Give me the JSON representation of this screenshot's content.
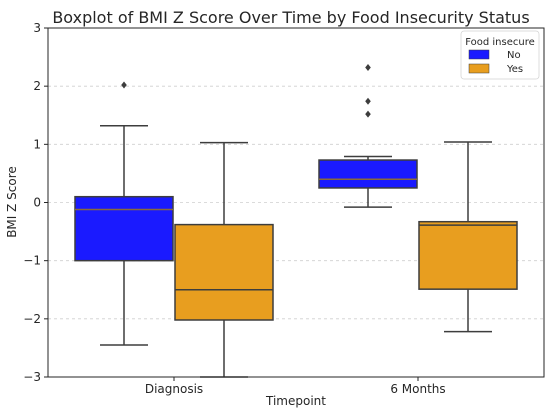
{
  "chart_data": {
    "type": "boxplot",
    "title": "Boxplot of BMI Z Score Over Time by Food Insecurity Status",
    "xlabel": "Timepoint",
    "ylabel": "BMI Z Score",
    "ylim": [
      -3,
      3
    ],
    "yticks": [
      -3,
      -2,
      -1,
      0,
      1,
      2,
      3
    ],
    "ytick_labels": [
      "−3",
      "−2",
      "−1",
      "0",
      "1",
      "2",
      "3"
    ],
    "categories": [
      "Diagnosis",
      "6 Months"
    ],
    "grid": "horizontal dashed",
    "legend": {
      "title": "Food insecure",
      "placement": "top-right"
    },
    "series": [
      {
        "name": "No",
        "color": "#1a1aff",
        "boxes": [
          {
            "category": "Diagnosis",
            "whisker_low": -2.45,
            "q1": -1.0,
            "median": -0.12,
            "q3": 0.1,
            "whisker_high": 1.32,
            "outliers": [
              2.02
            ]
          },
          {
            "category": "6 Months",
            "whisker_low": -0.08,
            "q1": 0.25,
            "median": 0.4,
            "q3": 0.73,
            "whisker_high": 0.79,
            "outliers": [
              1.52,
              1.74,
              2.32
            ]
          }
        ]
      },
      {
        "name": "Yes",
        "color": "#e89e1f",
        "boxes": [
          {
            "category": "Diagnosis",
            "whisker_low": -3.0,
            "q1": -2.02,
            "median": -1.5,
            "q3": -0.38,
            "whisker_high": 1.03,
            "outliers": []
          },
          {
            "category": "6 Months",
            "whisker_low": -2.22,
            "q1": -1.49,
            "median": -0.39,
            "q3": -0.33,
            "whisker_high": 1.04,
            "outliers": []
          }
        ]
      }
    ]
  }
}
